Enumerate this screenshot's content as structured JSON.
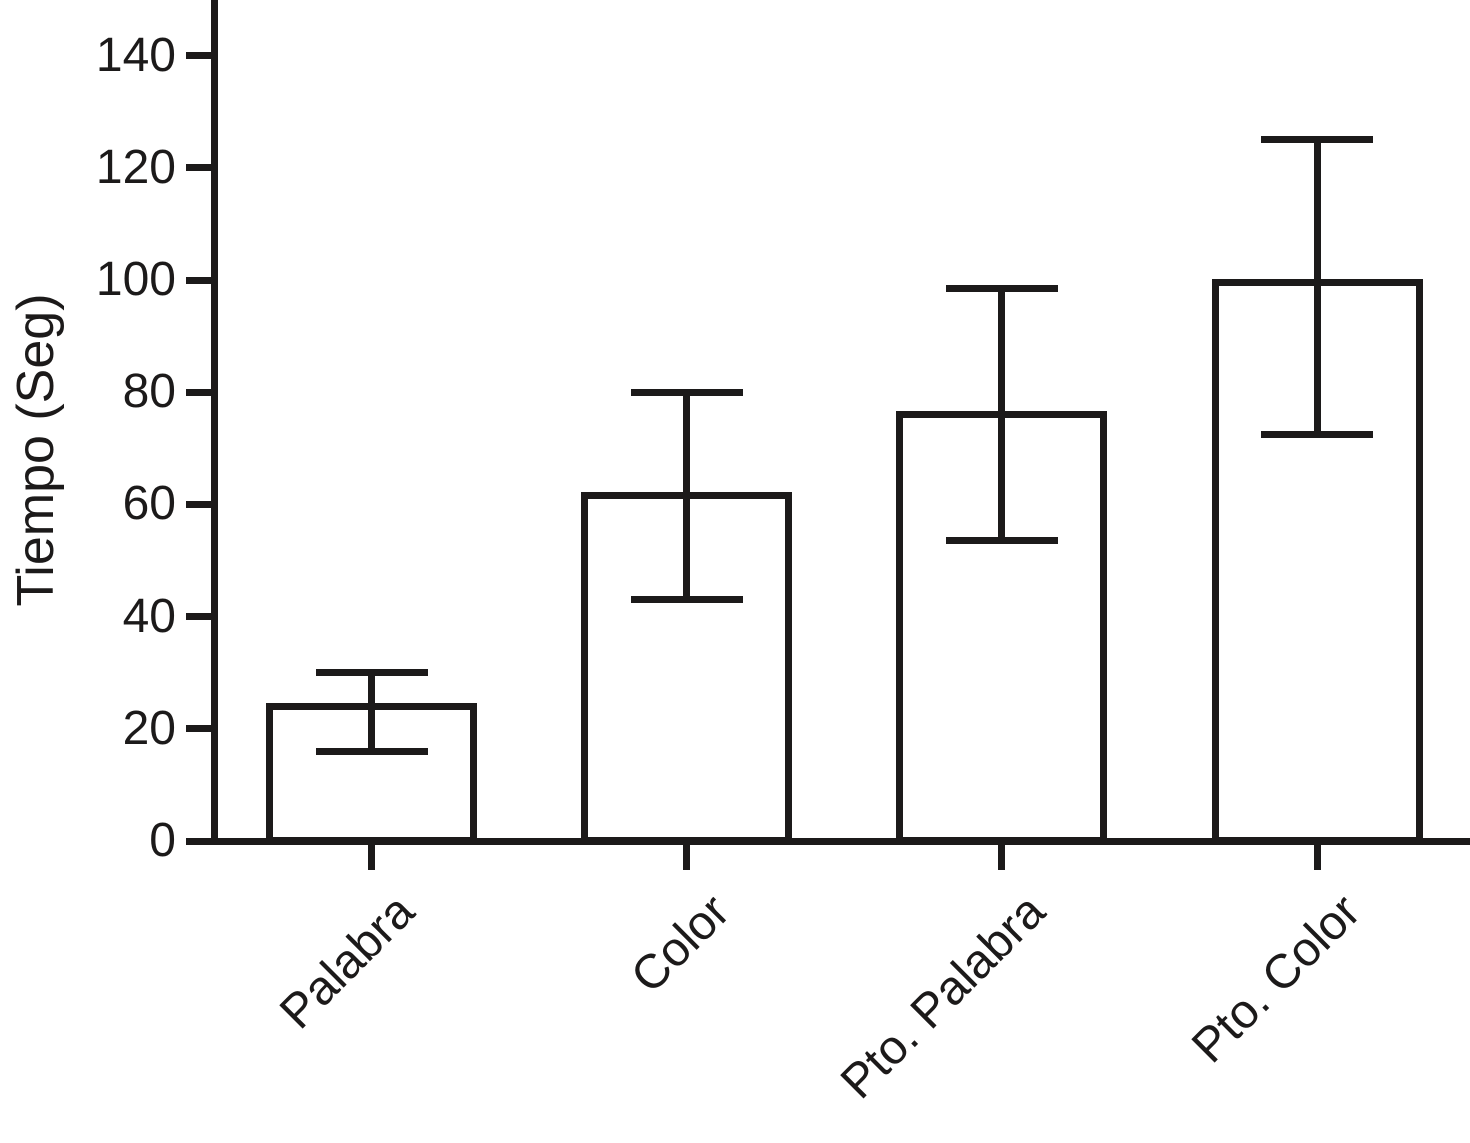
{
  "chart_data": {
    "type": "bar",
    "title": "",
    "xlabel": "",
    "ylabel": "Tiempo (Seg)",
    "categories": [
      "Palabra",
      "Color",
      "Pto. Palabra",
      "Pto. Color"
    ],
    "values": [
      24,
      61.5,
      76,
      99.5
    ],
    "error_low": [
      16,
      43,
      53.5,
      72.5
    ],
    "error_high": [
      30,
      80,
      98.5,
      125
    ],
    "yticks": [
      0,
      20,
      40,
      60,
      80,
      100,
      120,
      140
    ],
    "ytick_labels": [
      "0",
      "20",
      "40",
      "60",
      "80",
      "100",
      "120",
      "140"
    ],
    "ylim": [
      0,
      150
    ],
    "grid": false,
    "legend": "none",
    "error_caps": true,
    "bar_fill": "#ffffff",
    "ink_color": "#1c1a1a"
  }
}
